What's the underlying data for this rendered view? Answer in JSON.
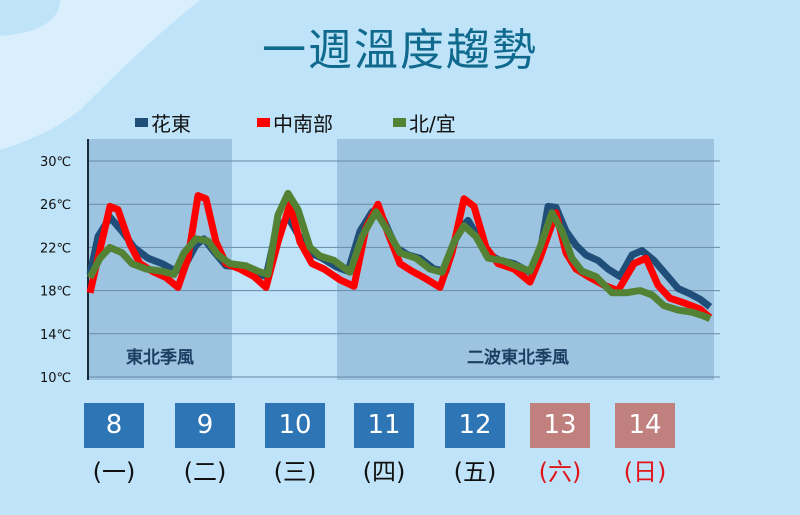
{
  "title": "一週溫度趨勢",
  "legend": [
    {
      "label": "花東",
      "color": "#1f4e79"
    },
    {
      "label": "中南部",
      "color": "#ff0000"
    },
    {
      "label": "北/宜",
      "color": "#548235"
    }
  ],
  "regions": [
    {
      "label": "東北季風"
    },
    {
      "label": "二波東北季風"
    }
  ],
  "days": [
    {
      "date": "8",
      "weekday": "(一)",
      "weekend": false
    },
    {
      "date": "9",
      "weekday": "(二)",
      "weekend": false
    },
    {
      "date": "10",
      "weekday": "(三)",
      "weekend": false
    },
    {
      "date": "11",
      "weekday": "(四)",
      "weekend": false
    },
    {
      "date": "12",
      "weekday": "(五)",
      "weekend": false
    },
    {
      "date": "13",
      "weekday": "(六)",
      "weekend": true
    },
    {
      "date": "14",
      "weekday": "(日)",
      "weekend": true
    }
  ],
  "chart_data": {
    "type": "line",
    "title": "一週溫度趨勢",
    "xlabel": "",
    "ylabel": "",
    "ylim": [
      10,
      30
    ],
    "yticks": [
      "10℃",
      "14℃",
      "18℃",
      "22℃",
      "26℃",
      "30℃"
    ],
    "categories": [
      "8 (一)",
      "9 (二)",
      "10 (三)",
      "11 (四)",
      "12 (五)",
      "13 (六)",
      "14 (日)"
    ],
    "grid": true,
    "legend_position": "top",
    "annotations": [
      {
        "text": "東北季風",
        "x_range": [
          "8",
          "9"
        ]
      },
      {
        "text": "二波東北季風",
        "x_range": [
          "11",
          "14"
        ]
      }
    ],
    "series": [
      {
        "name": "花東",
        "color": "#1f4e79",
        "points": [
          [
            90,
            19.5
          ],
          [
            98,
            23
          ],
          [
            110,
            24.8
          ],
          [
            122,
            23.5
          ],
          [
            134,
            22
          ],
          [
            148,
            21
          ],
          [
            162,
            20.5
          ],
          [
            176,
            19.8
          ],
          [
            186,
            20.5
          ],
          [
            196,
            22.2
          ],
          [
            204,
            22.8
          ],
          [
            214,
            21.6
          ],
          [
            226,
            20.3
          ],
          [
            240,
            20.2
          ],
          [
            254,
            19.7
          ],
          [
            266,
            19.3
          ],
          [
            276,
            23.5
          ],
          [
            288,
            24.8
          ],
          [
            298,
            23.2
          ],
          [
            310,
            21.5
          ],
          [
            322,
            21
          ],
          [
            336,
            20.2
          ],
          [
            348,
            19.8
          ],
          [
            360,
            23.5
          ],
          [
            372,
            25.3
          ],
          [
            384,
            24.5
          ],
          [
            396,
            22
          ],
          [
            408,
            21.3
          ],
          [
            420,
            21
          ],
          [
            434,
            20
          ],
          [
            446,
            19.8
          ],
          [
            458,
            23.5
          ],
          [
            468,
            24.5
          ],
          [
            478,
            23
          ],
          [
            490,
            21.3
          ],
          [
            500,
            20.8
          ],
          [
            514,
            20.5
          ],
          [
            530,
            19.7
          ],
          [
            540,
            21.5
          ],
          [
            548,
            25.8
          ],
          [
            556,
            25.7
          ],
          [
            566,
            23.5
          ],
          [
            576,
            22.2
          ],
          [
            586,
            21.3
          ],
          [
            598,
            20.8
          ],
          [
            608,
            20
          ],
          [
            620,
            19.3
          ],
          [
            632,
            21.3
          ],
          [
            642,
            21.7
          ],
          [
            654,
            20.8
          ],
          [
            666,
            19.5
          ],
          [
            678,
            18.2
          ],
          [
            690,
            17.7
          ],
          [
            700,
            17.2
          ],
          [
            710,
            16.5
          ]
        ]
      },
      {
        "name": "中南部",
        "color": "#ff0000",
        "points": [
          [
            90,
            17.8
          ],
          [
            98,
            21
          ],
          [
            110,
            25.8
          ],
          [
            118,
            25.5
          ],
          [
            130,
            22.3
          ],
          [
            140,
            20.5
          ],
          [
            152,
            19.8
          ],
          [
            166,
            19.2
          ],
          [
            178,
            18.3
          ],
          [
            188,
            21
          ],
          [
            198,
            26.8
          ],
          [
            206,
            26.5
          ],
          [
            216,
            22.5
          ],
          [
            226,
            20.5
          ],
          [
            240,
            20
          ],
          [
            254,
            19.3
          ],
          [
            266,
            18.3
          ],
          [
            278,
            22.5
          ],
          [
            290,
            26
          ],
          [
            300,
            22.5
          ],
          [
            312,
            20.5
          ],
          [
            324,
            20
          ],
          [
            340,
            19
          ],
          [
            354,
            18.4
          ],
          [
            366,
            23.8
          ],
          [
            378,
            26
          ],
          [
            388,
            23.3
          ],
          [
            400,
            20.5
          ],
          [
            412,
            19.8
          ],
          [
            424,
            19.2
          ],
          [
            440,
            18.3
          ],
          [
            452,
            21.5
          ],
          [
            464,
            26.5
          ],
          [
            474,
            25.8
          ],
          [
            486,
            22
          ],
          [
            498,
            20.5
          ],
          [
            514,
            20
          ],
          [
            530,
            18.8
          ],
          [
            540,
            21
          ],
          [
            556,
            25.2
          ],
          [
            566,
            21.5
          ],
          [
            576,
            20
          ],
          [
            590,
            19.2
          ],
          [
            604,
            18.5
          ],
          [
            618,
            18
          ],
          [
            634,
            20.5
          ],
          [
            646,
            21
          ],
          [
            658,
            18.5
          ],
          [
            670,
            17.3
          ],
          [
            686,
            16.8
          ],
          [
            700,
            16.3
          ],
          [
            710,
            15.5
          ]
        ]
      },
      {
        "name": "北/宜",
        "color": "#548235",
        "points": [
          [
            90,
            19.2
          ],
          [
            100,
            21
          ],
          [
            110,
            22
          ],
          [
            122,
            21.5
          ],
          [
            132,
            20.5
          ],
          [
            146,
            20
          ],
          [
            162,
            19.8
          ],
          [
            174,
            19.5
          ],
          [
            184,
            21.5
          ],
          [
            196,
            22.8
          ],
          [
            208,
            22.6
          ],
          [
            218,
            21.3
          ],
          [
            230,
            20.5
          ],
          [
            246,
            20.3
          ],
          [
            258,
            19.8
          ],
          [
            268,
            19.5
          ],
          [
            278,
            25
          ],
          [
            288,
            27
          ],
          [
            298,
            25.5
          ],
          [
            310,
            22
          ],
          [
            320,
            21.2
          ],
          [
            334,
            20.8
          ],
          [
            350,
            19.7
          ],
          [
            362,
            23
          ],
          [
            376,
            25.3
          ],
          [
            388,
            23.5
          ],
          [
            400,
            21.5
          ],
          [
            416,
            21
          ],
          [
            430,
            20
          ],
          [
            442,
            19.7
          ],
          [
            454,
            22.5
          ],
          [
            464,
            24
          ],
          [
            476,
            23
          ],
          [
            488,
            21
          ],
          [
            502,
            20.8
          ],
          [
            516,
            20.3
          ],
          [
            530,
            19.8
          ],
          [
            540,
            22
          ],
          [
            552,
            25.2
          ],
          [
            562,
            23.5
          ],
          [
            572,
            21
          ],
          [
            582,
            19.8
          ],
          [
            596,
            19.3
          ],
          [
            612,
            17.8
          ],
          [
            626,
            17.8
          ],
          [
            640,
            18
          ],
          [
            652,
            17.6
          ],
          [
            664,
            16.6
          ],
          [
            678,
            16.2
          ],
          [
            692,
            16
          ],
          [
            702,
            15.7
          ],
          [
            710,
            15.4
          ]
        ]
      }
    ]
  }
}
